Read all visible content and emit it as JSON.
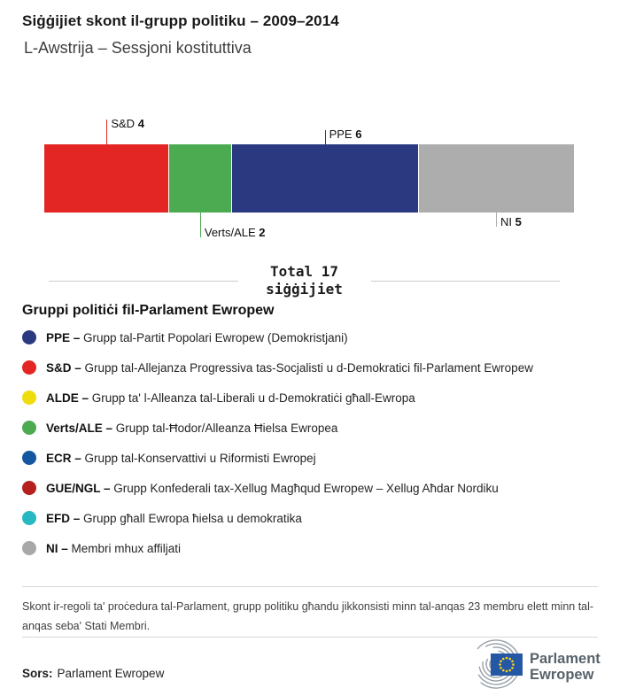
{
  "header": {
    "title": "Siġġijiet skont il-grupp politiku – 2009–2014",
    "subtitle": "L-Awstrija – Sessjoni kostituttiva"
  },
  "chart_data": {
    "type": "bar",
    "variant": "horizontal-stacked-single-bar",
    "title": "Siġġijiet skont il-grupp politiku – 2009–2014",
    "subtitle": "L-Awstrija – Sessjoni kostituttiva",
    "total_seats": 17,
    "total_label_line1": "Total 17",
    "total_label_line2": "siġġijiet",
    "legend_position": "below",
    "segments": [
      {
        "group": "S&D",
        "seats": 4,
        "color": "#e32624",
        "callout": {
          "side": "top",
          "len": 28
        }
      },
      {
        "group": "Verts/ALE",
        "seats": 2,
        "color": "#4cab51",
        "callout": {
          "side": "bottom",
          "len": 28
        }
      },
      {
        "group": "PPE",
        "seats": 6,
        "color": "#2b3a80",
        "callout": {
          "side": "top",
          "len": 16
        }
      },
      {
        "group": "NI",
        "seats": 5,
        "color": "#adadad",
        "callout": {
          "side": "bottom",
          "len": 16
        }
      }
    ]
  },
  "legend": {
    "heading": "Gruppi politiċi fil-Parlament Ewropew",
    "items": [
      {
        "code": "PPE –",
        "name": "Grupp tal-Partit Popolari Ewropew (Demokristjani)",
        "color": "#2b3a80"
      },
      {
        "code": "S&D –",
        "name": "Grupp tal-Allejanza Progressiva tas-Socjalisti u d-Demokratici fil-Parlament Ewropew",
        "color": "#e32624"
      },
      {
        "code": "ALDE –",
        "name": "Grupp ta' l-Alleanza tal-Liberali u d-Demokratiċi għall-Ewropa",
        "color": "#efdc0c"
      },
      {
        "code": "Verts/ALE –",
        "name": "Grupp tal-Ħodor/Alleanza Ħielsa Ewropea",
        "color": "#4cab51"
      },
      {
        "code": "ECR –",
        "name": "Grupp tal-Konservattivi u Riformisti Ewropej",
        "color": "#1456a0"
      },
      {
        "code": "GUE/NGL –",
        "name": "Grupp Konfederali tax-Xellug Magħqud Ewropew – Xellug Aħdar Nordiku",
        "color": "#b5201e"
      },
      {
        "code": "EFD –",
        "name": "Grupp għall Ewropa ħielsa u demokratika",
        "color": "#27b8c2"
      },
      {
        "code": "NI –",
        "name": "Membri mhux affiljati",
        "color": "#a8a8a8"
      }
    ]
  },
  "footer": {
    "note": "Skont ir-regoli ta' proċedura tal-Parlament, grupp politiku għandu jikkonsisti minn tal-anqas 23 membru elett minn tal-anqas seba' Stati Membri.",
    "source_label": "Sors:",
    "source_value": "Parlament Ewropew",
    "logo": {
      "line1": "Parlament",
      "line2": "Ewropew"
    }
  }
}
